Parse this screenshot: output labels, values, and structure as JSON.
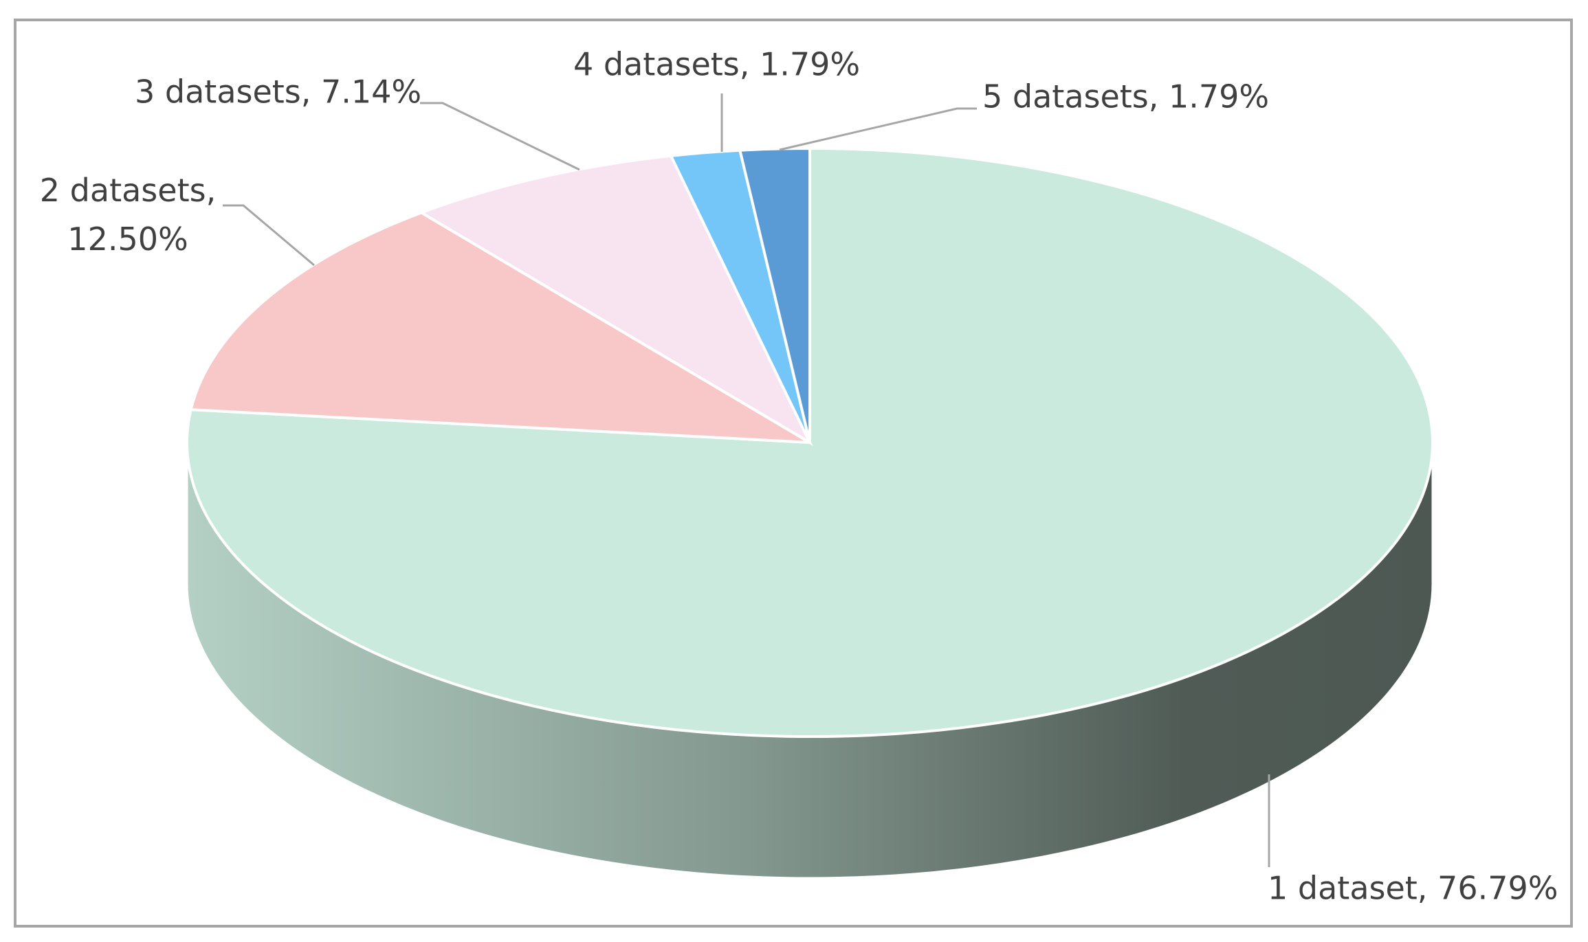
{
  "chart_data": {
    "type": "pie3d",
    "values": [
      76.79,
      12.5,
      7.14,
      1.79,
      1.79
    ],
    "value_labels": [
      "1 dataset, 76.79%",
      "2 datasets, 12.50%",
      "3 datasets, 7.14%",
      "4 datasets, 1.79%",
      "5 datasets, 1.79%"
    ],
    "colors": [
      "#c9eadd",
      "#f8c8c8",
      "#f8e4f0",
      "#74c6f8",
      "#5b9bd5"
    ]
  }
}
